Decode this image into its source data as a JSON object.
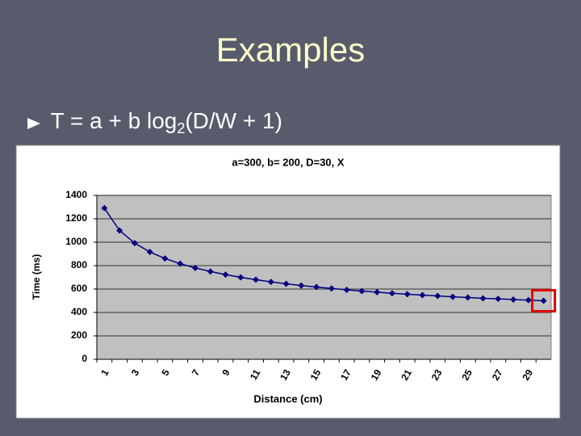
{
  "slide_title": "Examples",
  "bullet": {
    "prefix": "T = a + b log",
    "sub": "2",
    "suffix": "(D/W + 1)"
  },
  "chart_data": {
    "type": "line",
    "title": "a=300, b= 200, D=30, X",
    "x_label": "Distance (cm)",
    "y_label": "Time (ms)",
    "categories": [
      1,
      null,
      3,
      null,
      5,
      null,
      7,
      null,
      9,
      null,
      11,
      null,
      13,
      null,
      15,
      null,
      17,
      null,
      19,
      null,
      21,
      null,
      23,
      null,
      25,
      null,
      27,
      null,
      29,
      null
    ],
    "values": [
      1291,
      1100,
      992,
      917,
      861,
      817,
      780,
      750,
      723,
      700,
      680,
      661,
      645,
      630,
      617,
      605,
      593,
      583,
      573,
      564,
      556,
      548,
      541,
      534,
      528,
      521,
      516,
      510,
      505,
      500
    ],
    "color": "#000080",
    "ylim": [
      0,
      1400
    ],
    "yticks": [
      0,
      200,
      400,
      600,
      800,
      1000,
      1200,
      1400
    ],
    "grid": true
  }
}
